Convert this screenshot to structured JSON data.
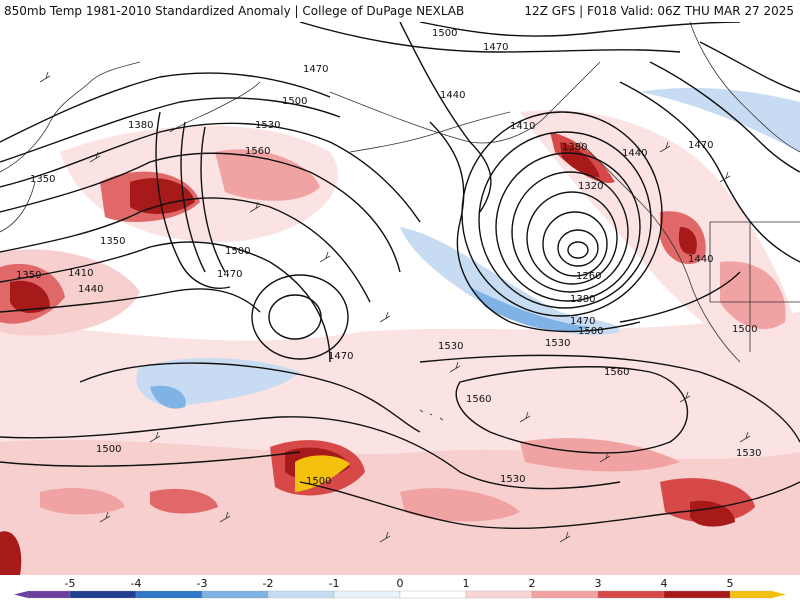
{
  "header": {
    "title_left": "850mb Temp 1981-2010 Standardized Anomaly | College of DuPage NEXLAB",
    "title_right": "12Z GFS | F018 Valid: 06Z THU MAR 27 2025"
  },
  "map": {
    "contour_labels": [
      "1500",
      "1470",
      "1470",
      "1500",
      "1530",
      "1560",
      "1440",
      "1410",
      "1380",
      "1350",
      "1350",
      "1350",
      "1410",
      "1440",
      "1500",
      "1470",
      "1470",
      "1530",
      "1380",
      "1320",
      "1260",
      "1380",
      "1470",
      "1500",
      "1440",
      "1470",
      "1500",
      "1560",
      "1530",
      "1560",
      "1530",
      "1500",
      "1530",
      "1500",
      "1440"
    ]
  },
  "colorbar": {
    "ticks": [
      "-5",
      "-4",
      "-3",
      "-2",
      "-1",
      "0",
      "1",
      "2",
      "3",
      "4",
      "5"
    ],
    "colors": [
      "#6a3fa0",
      "#1f3f8f",
      "#2f76c8",
      "#7fb2e5",
      "#c7dcf2",
      "#e9f1fa",
      "#ffffff",
      "#f8d6d6",
      "#f1a3a3",
      "#d74848",
      "#a71a1a",
      "#f4c20d"
    ]
  }
}
